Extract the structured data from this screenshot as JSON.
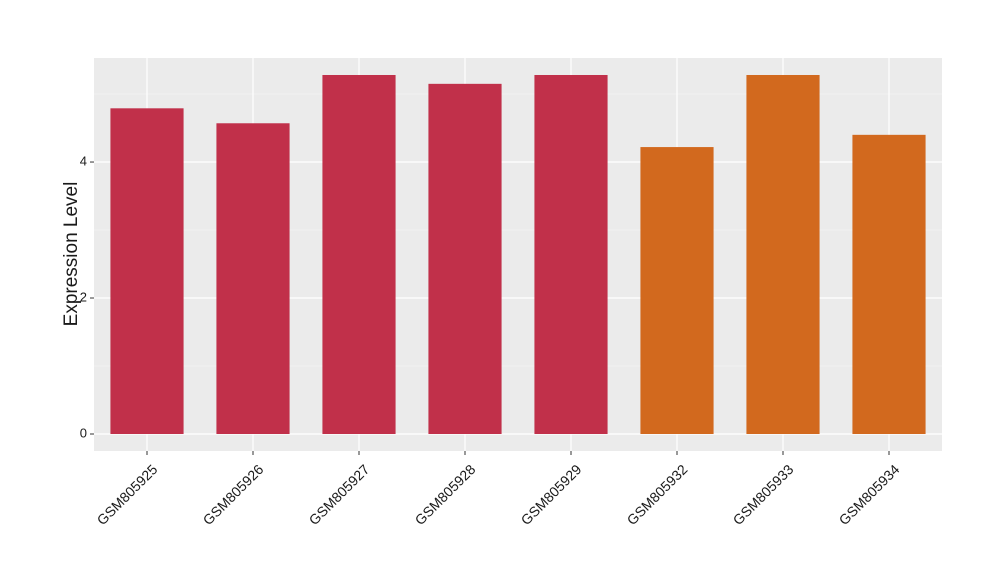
{
  "chart_data": {
    "type": "bar",
    "y_label": "Expression Level",
    "categories": [
      "GSM805925",
      "GSM805926",
      "GSM805927",
      "GSM805928",
      "GSM805929",
      "GSM805932",
      "GSM805933",
      "GSM805934"
    ],
    "values": [
      4.79,
      4.57,
      5.28,
      5.15,
      5.28,
      4.22,
      5.28,
      4.4
    ],
    "colors": [
      "#c1304a",
      "#c1304a",
      "#c1304a",
      "#c1304a",
      "#c1304a",
      "#d2691e",
      "#d2691e",
      "#d2691e"
    ],
    "ylim": [
      -0.25,
      5.53
    ],
    "yticks": [
      0,
      2,
      4
    ],
    "grid": true
  }
}
